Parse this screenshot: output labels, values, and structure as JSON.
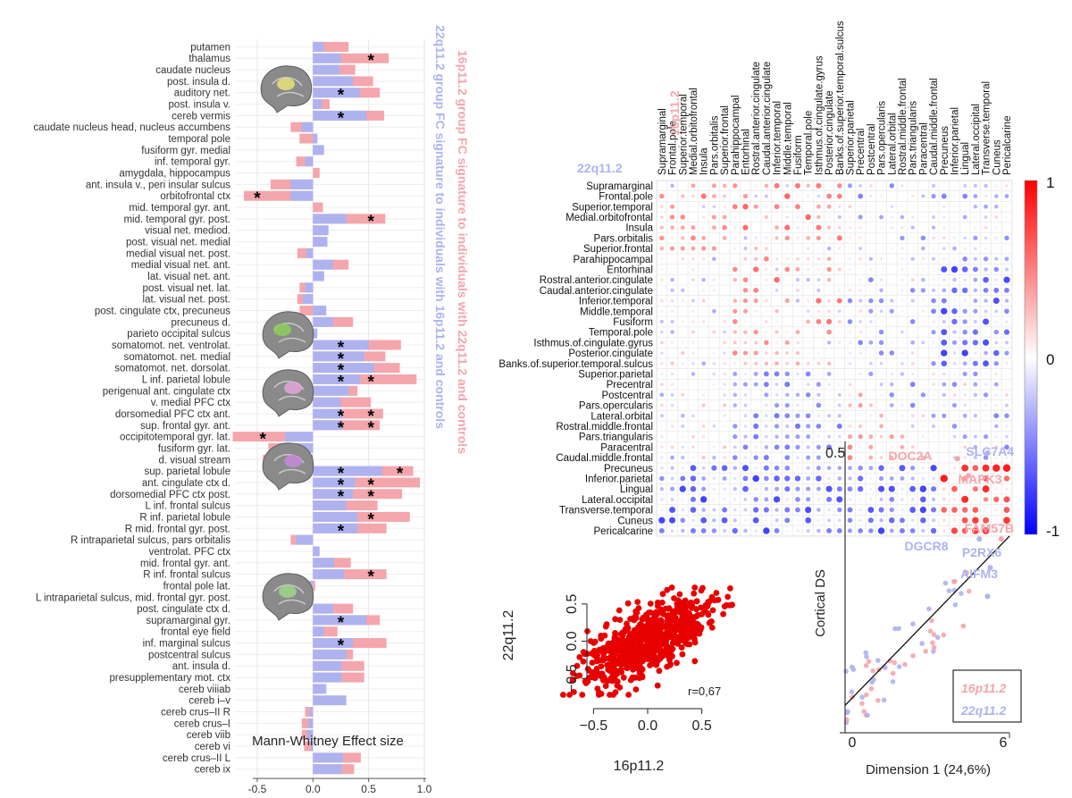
{
  "colors": {
    "pink": "#F4A6AC",
    "lavender": "#AEB3EF",
    "red": "#E80000",
    "blue": "#1010E8",
    "grid": "#E6E6E6"
  },
  "chart_data": [
    {
      "type": "bar",
      "orientation": "horizontal",
      "xlabel": "Mann-Whitney Effect size",
      "xlim": [
        -0.7,
        1.0
      ],
      "xticks": [
        -0.5,
        0.0,
        0.5,
        1.0
      ],
      "xtick_labels": [
        "-0.5",
        "0.0",
        "0.5",
        "1.0"
      ],
      "series_names": [
        "16p11.2 group FC signature to individuals with 22q11.2 and controls",
        "22q11.2 group FC signature to individuals with 16p11.2 and controls"
      ],
      "significance_marker": "*",
      "categories": [
        {
          "label": "putamen",
          "p16": 0.32,
          "p22": 0.1,
          "sig": []
        },
        {
          "label": "thalamus",
          "p16": 0.68,
          "p22": 0.25,
          "sig": [
            0.52
          ]
        },
        {
          "label": "caudate nucleus",
          "p16": 0.38,
          "p22": 0.24,
          "sig": []
        },
        {
          "label": "post. insula d.",
          "p16": 0.54,
          "p22": 0.36,
          "sig": []
        },
        {
          "label": "auditory net.",
          "p16": 0.6,
          "p22": 0.42,
          "sig": [
            0.25
          ]
        },
        {
          "label": "post. insula v.",
          "p16": 0.15,
          "p22": 0.08,
          "sig": []
        },
        {
          "label": "cereb vermis",
          "p16": 0.64,
          "p22": 0.48,
          "sig": [
            0.25
          ]
        },
        {
          "label": "caudate nucleus head, nucleus accumbens",
          "p16": -0.2,
          "p22": -0.1,
          "sig": []
        },
        {
          "label": "temporal pole",
          "p16": -0.12,
          "p22": 0.04,
          "sig": []
        },
        {
          "label": "fusiform gyr. medial",
          "p16": 0.03,
          "p22": 0.1,
          "sig": []
        },
        {
          "label": "inf. temporal gyr.",
          "p16": -0.15,
          "p22": -0.07,
          "sig": []
        },
        {
          "label": "amygdala, hippocampus",
          "p16": 0.06,
          "p22": 0.0,
          "sig": []
        },
        {
          "label": "ant. insula v., peri insular sulcus",
          "p16": -0.38,
          "p22": -0.2,
          "sig": []
        },
        {
          "label": "orbitofrontal ctx",
          "p16": -0.62,
          "p22": -0.2,
          "sig": [
            -0.5
          ]
        },
        {
          "label": "mid. temporal gyr. ant.",
          "p16": 0.09,
          "p22": 0.0,
          "sig": []
        },
        {
          "label": "mid. temporal gyr. post.",
          "p16": 0.65,
          "p22": 0.3,
          "sig": [
            0.52
          ]
        },
        {
          "label": "visual net. mediod.",
          "p16": 0.13,
          "p22": 0.14,
          "sig": []
        },
        {
          "label": "post. visual net. medial",
          "p16": 0.11,
          "p22": 0.13,
          "sig": []
        },
        {
          "label": "medial visual net. post.",
          "p16": -0.14,
          "p22": -0.06,
          "sig": []
        },
        {
          "label": "medial visual net. ant.",
          "p16": 0.32,
          "p22": 0.18,
          "sig": []
        },
        {
          "label": "lat. visual net. ant.",
          "p16": 0.1,
          "p22": 0.1,
          "sig": []
        },
        {
          "label": "post. visual net. lat.",
          "p16": -0.12,
          "p22": -0.07,
          "sig": []
        },
        {
          "label": "lat. visual net. post.",
          "p16": -0.14,
          "p22": -0.09,
          "sig": []
        },
        {
          "label": "post. cingulate ctx, precuneus",
          "p16": -0.12,
          "p22": 0.12,
          "sig": []
        },
        {
          "label": "precuneus d.",
          "p16": 0.36,
          "p22": 0.18,
          "sig": []
        },
        {
          "label": "parieto occipital sulcus",
          "p16": -0.1,
          "p22": 0.04,
          "sig": []
        },
        {
          "label": "somatomot. net. ventrolat.",
          "p16": 0.79,
          "p22": 0.5,
          "sig": [
            0.25
          ]
        },
        {
          "label": "somatomot. net. medial",
          "p16": 0.65,
          "p22": 0.46,
          "sig": [
            0.25
          ]
        },
        {
          "label": "somatomot. net. dorsolat.",
          "p16": 0.78,
          "p22": 0.55,
          "sig": [
            0.25
          ]
        },
        {
          "label": "L inf. parietal lobule",
          "p16": 0.93,
          "p22": 0.42,
          "sig": [
            0.25,
            0.52
          ]
        },
        {
          "label": "perigenual ant. cingulate ctx",
          "p16": 0.4,
          "p22": 0.32,
          "sig": []
        },
        {
          "label": "v. medial PFC ctx",
          "p16": 0.52,
          "p22": 0.25,
          "sig": []
        },
        {
          "label": "dorsomedial PFC ctx ant.",
          "p16": 0.63,
          "p22": 0.26,
          "sig": [
            0.25,
            0.52
          ]
        },
        {
          "label": "sup. frontal gyr. ant.",
          "p16": 0.6,
          "p22": 0.26,
          "sig": [
            0.25,
            0.52
          ]
        },
        {
          "label": "occipitotemporal gyr. lat.",
          "p16": -0.72,
          "p22": -0.25,
          "sig": [
            -0.45
          ]
        },
        {
          "label": "fusiform gyr. lat.",
          "p16": -0.4,
          "p22": -0.16,
          "sig": []
        },
        {
          "label": "d. visual stream",
          "p16": -0.45,
          "p22": -0.15,
          "sig": []
        },
        {
          "label": "sup. parietal lobule",
          "p16": 0.9,
          "p22": 0.62,
          "sig": [
            0.25,
            0.78
          ]
        },
        {
          "label": "ant. cingulate ctx d.",
          "p16": 0.96,
          "p22": 0.38,
          "sig": [
            0.25,
            0.52
          ]
        },
        {
          "label": "dorsomedial PFC ctx post.",
          "p16": 0.8,
          "p22": 0.36,
          "sig": [
            0.25,
            0.52
          ]
        },
        {
          "label": "L inf. frontal sulcus",
          "p16": 0.58,
          "p22": 0.3,
          "sig": []
        },
        {
          "label": "R inf. parietal lobule",
          "p16": 0.87,
          "p22": 0.4,
          "sig": [
            0.52
          ]
        },
        {
          "label": "R mid. frontal gyr. post.",
          "p16": 0.66,
          "p22": 0.4,
          "sig": [
            0.25
          ]
        },
        {
          "label": "R intraparietal sulcus, pars orbitalis",
          "p16": -0.2,
          "p22": -0.15,
          "sig": []
        },
        {
          "label": "ventrolat. PFC ctx",
          "p16": 0.03,
          "p22": 0.06,
          "sig": []
        },
        {
          "label": "mid. frontal gyr. ant.",
          "p16": 0.34,
          "p22": 0.19,
          "sig": []
        },
        {
          "label": "R inf. frontal sulcus",
          "p16": 0.66,
          "p22": 0.28,
          "sig": [
            0.52
          ]
        },
        {
          "label": "frontal pole lat.",
          "p16": 0.02,
          "p22": -0.12,
          "sig": []
        },
        {
          "label": "L intraparietal sulcus, mid. frontal gyr. post.",
          "p16": -0.1,
          "p22": -0.15,
          "sig": []
        },
        {
          "label": "post. cingulate ctx d.",
          "p16": 0.36,
          "p22": 0.18,
          "sig": []
        },
        {
          "label": "supramarginal gyr.",
          "p16": 0.6,
          "p22": 0.48,
          "sig": [
            0.25
          ]
        },
        {
          "label": "frontal eye field",
          "p16": 0.22,
          "p22": 0.1,
          "sig": []
        },
        {
          "label": "inf. marginal sulcus",
          "p16": 0.66,
          "p22": 0.36,
          "sig": [
            0.25
          ]
        },
        {
          "label": "postcentral sulcus",
          "p16": 0.36,
          "p22": 0.3,
          "sig": []
        },
        {
          "label": "ant. insula d.",
          "p16": 0.46,
          "p22": 0.26,
          "sig": []
        },
        {
          "label": "presupplementary mot. ctx",
          "p16": 0.46,
          "p22": 0.26,
          "sig": []
        },
        {
          "label": "cereb viiiab",
          "p16": 0.06,
          "p22": 0.12,
          "sig": []
        },
        {
          "label": "cereb i–v",
          "p16": 0.04,
          "p22": 0.3,
          "sig": []
        },
        {
          "label": "cereb crus–II R",
          "p16": -0.07,
          "p22": -0.03,
          "sig": []
        },
        {
          "label": "cereb crus–I",
          "p16": -0.1,
          "p22": -0.04,
          "sig": []
        },
        {
          "label": "cereb viib",
          "p16": -0.1,
          "p22": -0.05,
          "sig": []
        },
        {
          "label": "cereb vi",
          "p16": -0.08,
          "p22": -0.02,
          "sig": []
        },
        {
          "label": "cereb crus–II L",
          "p16": 0.43,
          "p22": 0.27,
          "sig": []
        },
        {
          "label": "cereb ix",
          "p16": 0.37,
          "p22": 0.26,
          "sig": []
        }
      ]
    },
    {
      "type": "heatmap",
      "subtype": "correlation-matrix",
      "title_upper": "16p11.2",
      "title_lower": "22q11.2",
      "regions": [
        "Supramarginal",
        "Frontal.pole",
        "Superior.temporal",
        "Medial.orbitofrontal",
        "Insula",
        "Pars.orbitalis",
        "Superior.frontal",
        "Parahippocampal",
        "Entorhinal",
        "Rostral.anterior.cingulate",
        "Caudal.anterior.cingulate",
        "Inferior.temporal",
        "Middle.temporal",
        "Fusiform",
        "Temporal.pole",
        "Isthmus.of.cingulate.gyrus",
        "Posterior.cingulate",
        "Banks.of.superior.temporal.sulcus",
        "Superior.parietal",
        "Precentral",
        "Postcentral",
        "Pars.opercularis",
        "Lateral.orbital",
        "Rostral.middle.frontal",
        "Pars.triangularis",
        "Paracentral",
        "Caudal.middle.frontal",
        "Precuneus",
        "Inferior.parietal",
        "Lingual",
        "Lateral.occipital",
        "Transverse.temporal",
        "Cuneus",
        "Pericalcarine"
      ],
      "colorbar": {
        "min": -1,
        "max": 1,
        "ticks": [
          "1",
          "0",
          "-1"
        ]
      }
    },
    {
      "type": "scatter",
      "xlabel": "16p11.2",
      "ylabel": "22q11.2",
      "xlim": [
        -0.8,
        0.8
      ],
      "ylim": [
        -0.75,
        0.75
      ],
      "xtick_labels": [
        "−0.5",
        "0.0",
        "0.5"
      ],
      "ytick_labels": [
        "−0.5",
        "0.0",
        "0.5"
      ],
      "annotation": "r=0,67",
      "n_points": 700,
      "correlation": 0.67
    },
    {
      "type": "scatter",
      "xlabel": "Dimension 1 (24,6%)",
      "ylabel": "Cortical DS",
      "xtick_labels": [
        "0",
        "6"
      ],
      "ytick_labels": [
        "0.5"
      ],
      "xlim": [
        0,
        6
      ],
      "ylim": [
        0,
        0.5
      ],
      "legend": [
        "16p11.2",
        "22q11.2"
      ],
      "legend_position": "bottom-right",
      "labeled_genes": [
        {
          "name": "DOC2A",
          "x": 4.1,
          "y": 0.47,
          "group": "16p11.2"
        },
        {
          "name": "SLC7A4",
          "x": 5.2,
          "y": 0.48,
          "group": "22q11.2"
        },
        {
          "name": "MAPK3",
          "x": 4.5,
          "y": 0.44,
          "group": "16p11.2"
        },
        {
          "name": "FAM57B",
          "x": 5.7,
          "y": 0.33,
          "group": "16p11.2"
        },
        {
          "name": "DGCR8",
          "x": 4.9,
          "y": 0.33,
          "group": "22q11.2"
        },
        {
          "name": "P2RX6",
          "x": 5.3,
          "y": 0.28,
          "group": "22q11.2"
        },
        {
          "name": "AIFM3",
          "x": 5.2,
          "y": 0.23,
          "group": "22q11.2"
        }
      ]
    }
  ]
}
